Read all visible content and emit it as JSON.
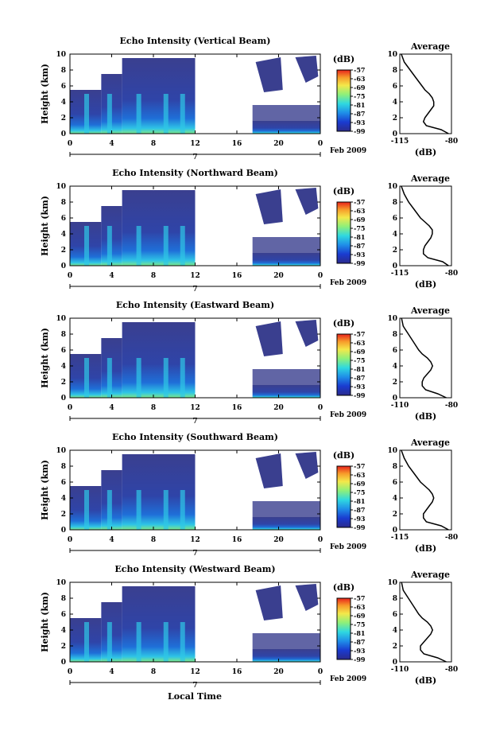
{
  "figure": {
    "bottom_xlabel": "Local Time",
    "ylabel": "Height (km)",
    "date_label": "Feb 2009",
    "day_label": "7",
    "colorbar_unit": "(dB)",
    "avg_title": "Average",
    "avg_xlabel": "(dB)"
  },
  "chart_data": [
    {
      "type": "heatmap",
      "title": "Echo Intensity (Vertical Beam)",
      "x_ticks": [
        "0",
        "4",
        "8",
        "12",
        "16",
        "20",
        "0"
      ],
      "y_ticks": [
        "0",
        "2",
        "4",
        "6",
        "8",
        "10"
      ],
      "ylim": [
        0,
        10
      ],
      "xlim_hours": [
        0,
        24
      ],
      "data_gap_hours": [
        12,
        17.5
      ],
      "colorbar_ticks": [
        "-57",
        "-63",
        "-69",
        "-75",
        "-81",
        "-87",
        "-93",
        "-99"
      ],
      "colorbar_range": [
        -99,
        -57
      ],
      "average_profile": {
        "type": "line",
        "title": "Average",
        "x_ticks": [
          "-115",
          "-80"
        ],
        "xlim": [
          -115,
          -80
        ],
        "y_ticks": [
          "0",
          "2",
          "4",
          "6",
          "8",
          "10"
        ],
        "ylim": [
          0,
          10
        ],
        "height_km": [
          0,
          0.5,
          1,
          1.5,
          2,
          2.5,
          3,
          3.5,
          4,
          4.5,
          5,
          5.5,
          6,
          7,
          8,
          9,
          10
        ],
        "db": [
          -82,
          -87,
          -97,
          -99,
          -98,
          -96,
          -94,
          -92,
          -92,
          -93,
          -95,
          -98,
          -100,
          -104,
          -108,
          -112,
          -114
        ]
      }
    },
    {
      "type": "heatmap",
      "title": "Echo Intensity (Northward Beam)",
      "x_ticks": [
        "0",
        "4",
        "8",
        "12",
        "16",
        "20",
        "0"
      ],
      "y_ticks": [
        "0",
        "2",
        "4",
        "6",
        "8",
        "10"
      ],
      "ylim": [
        0,
        10
      ],
      "xlim_hours": [
        0,
        24
      ],
      "data_gap_hours": [
        12,
        17.5
      ],
      "colorbar_ticks": [
        "-57",
        "-63",
        "-69",
        "-75",
        "-81",
        "-87",
        "-93",
        "-99"
      ],
      "colorbar_range": [
        -99,
        -57
      ],
      "average_profile": {
        "type": "line",
        "title": "Average",
        "x_ticks": [
          "-115",
          "-80"
        ],
        "xlim": [
          -115,
          -80
        ],
        "y_ticks": [
          "0",
          "2",
          "4",
          "6",
          "8",
          "10"
        ],
        "ylim": [
          0,
          10
        ],
        "height_km": [
          0,
          0.5,
          1,
          1.5,
          2,
          2.5,
          3,
          3.5,
          4,
          4.5,
          5,
          5.5,
          6,
          7,
          8,
          9,
          10
        ],
        "db": [
          -82,
          -86,
          -96,
          -99,
          -99,
          -98,
          -96,
          -94,
          -93,
          -93,
          -95,
          -98,
          -101,
          -105,
          -109,
          -112,
          -114
        ]
      }
    },
    {
      "type": "heatmap",
      "title": "Echo Intensity (Eastward Beam)",
      "x_ticks": [
        "0",
        "4",
        "8",
        "12",
        "16",
        "20",
        "0"
      ],
      "y_ticks": [
        "0",
        "2",
        "4",
        "6",
        "8",
        "10"
      ],
      "ylim": [
        0,
        10
      ],
      "xlim_hours": [
        0,
        24
      ],
      "data_gap_hours": [
        12,
        17.5
      ],
      "colorbar_ticks": [
        "-57",
        "-63",
        "-69",
        "-75",
        "-81",
        "-87",
        "-93",
        "-99"
      ],
      "colorbar_range": [
        -99,
        -57
      ],
      "average_profile": {
        "type": "line",
        "title": "Average",
        "x_ticks": [
          "-110",
          "-80"
        ],
        "xlim": [
          -110,
          -80
        ],
        "y_ticks": [
          "0",
          "2",
          "4",
          "6",
          "8",
          "10"
        ],
        "ylim": [
          0,
          10
        ],
        "height_km": [
          0,
          0.5,
          1,
          1.5,
          2,
          2.5,
          3,
          3.5,
          4,
          4.5,
          5,
          5.5,
          6,
          7,
          8,
          9,
          10
        ],
        "db": [
          -83,
          -88,
          -95,
          -97,
          -97,
          -96,
          -94,
          -92,
          -91,
          -92,
          -94,
          -97,
          -99,
          -102,
          -105,
          -108,
          -109
        ]
      }
    },
    {
      "type": "heatmap",
      "title": "Echo Intensity (Southward Beam)",
      "x_ticks": [
        "0",
        "4",
        "8",
        "12",
        "16",
        "20",
        "0"
      ],
      "y_ticks": [
        "0",
        "2",
        "4",
        "6",
        "8",
        "10"
      ],
      "ylim": [
        0,
        10
      ],
      "xlim_hours": [
        0,
        24
      ],
      "data_gap_hours": [
        12,
        17.5
      ],
      "colorbar_ticks": [
        "-57",
        "-63",
        "-69",
        "-75",
        "-81",
        "-87",
        "-93",
        "-99"
      ],
      "colorbar_range": [
        -99,
        -57
      ],
      "average_profile": {
        "type": "line",
        "title": "Average",
        "x_ticks": [
          "-115",
          "-80"
        ],
        "xlim": [
          -115,
          -80
        ],
        "y_ticks": [
          "0",
          "2",
          "4",
          "6",
          "8",
          "10"
        ],
        "ylim": [
          0,
          10
        ],
        "height_km": [
          0,
          0.5,
          1,
          1.5,
          2,
          2.5,
          3,
          3.5,
          4,
          4.5,
          5,
          5.5,
          6,
          7,
          8,
          9,
          10
        ],
        "db": [
          -82,
          -87,
          -97,
          -99,
          -99,
          -97,
          -95,
          -93,
          -92,
          -93,
          -95,
          -98,
          -101,
          -105,
          -109,
          -112,
          -114
        ]
      }
    },
    {
      "type": "heatmap",
      "title": "Echo Intensity (Westward Beam)",
      "x_ticks": [
        "0",
        "4",
        "8",
        "12",
        "16",
        "20",
        "0"
      ],
      "y_ticks": [
        "0",
        "2",
        "4",
        "6",
        "8",
        "10"
      ],
      "ylim": [
        0,
        10
      ],
      "xlim_hours": [
        0,
        24
      ],
      "data_gap_hours": [
        12,
        17.5
      ],
      "colorbar_ticks": [
        "-57",
        "-63",
        "-69",
        "-75",
        "-81",
        "-87",
        "-93",
        "-99"
      ],
      "colorbar_range": [
        -99,
        -57
      ],
      "average_profile": {
        "type": "line",
        "title": "Average",
        "x_ticks": [
          "-110",
          "-80"
        ],
        "xlim": [
          -110,
          -80
        ],
        "y_ticks": [
          "0",
          "2",
          "4",
          "6",
          "8",
          "10"
        ],
        "ylim": [
          0,
          10
        ],
        "height_km": [
          0,
          0.5,
          1,
          1.5,
          2,
          2.5,
          3,
          3.5,
          4,
          4.5,
          5,
          5.5,
          6,
          7,
          8,
          9,
          10
        ],
        "db": [
          -83,
          -88,
          -96,
          -98,
          -98,
          -96,
          -94,
          -92,
          -91,
          -92,
          -94,
          -97,
          -99,
          -102,
          -105,
          -108,
          -109
        ]
      }
    }
  ]
}
